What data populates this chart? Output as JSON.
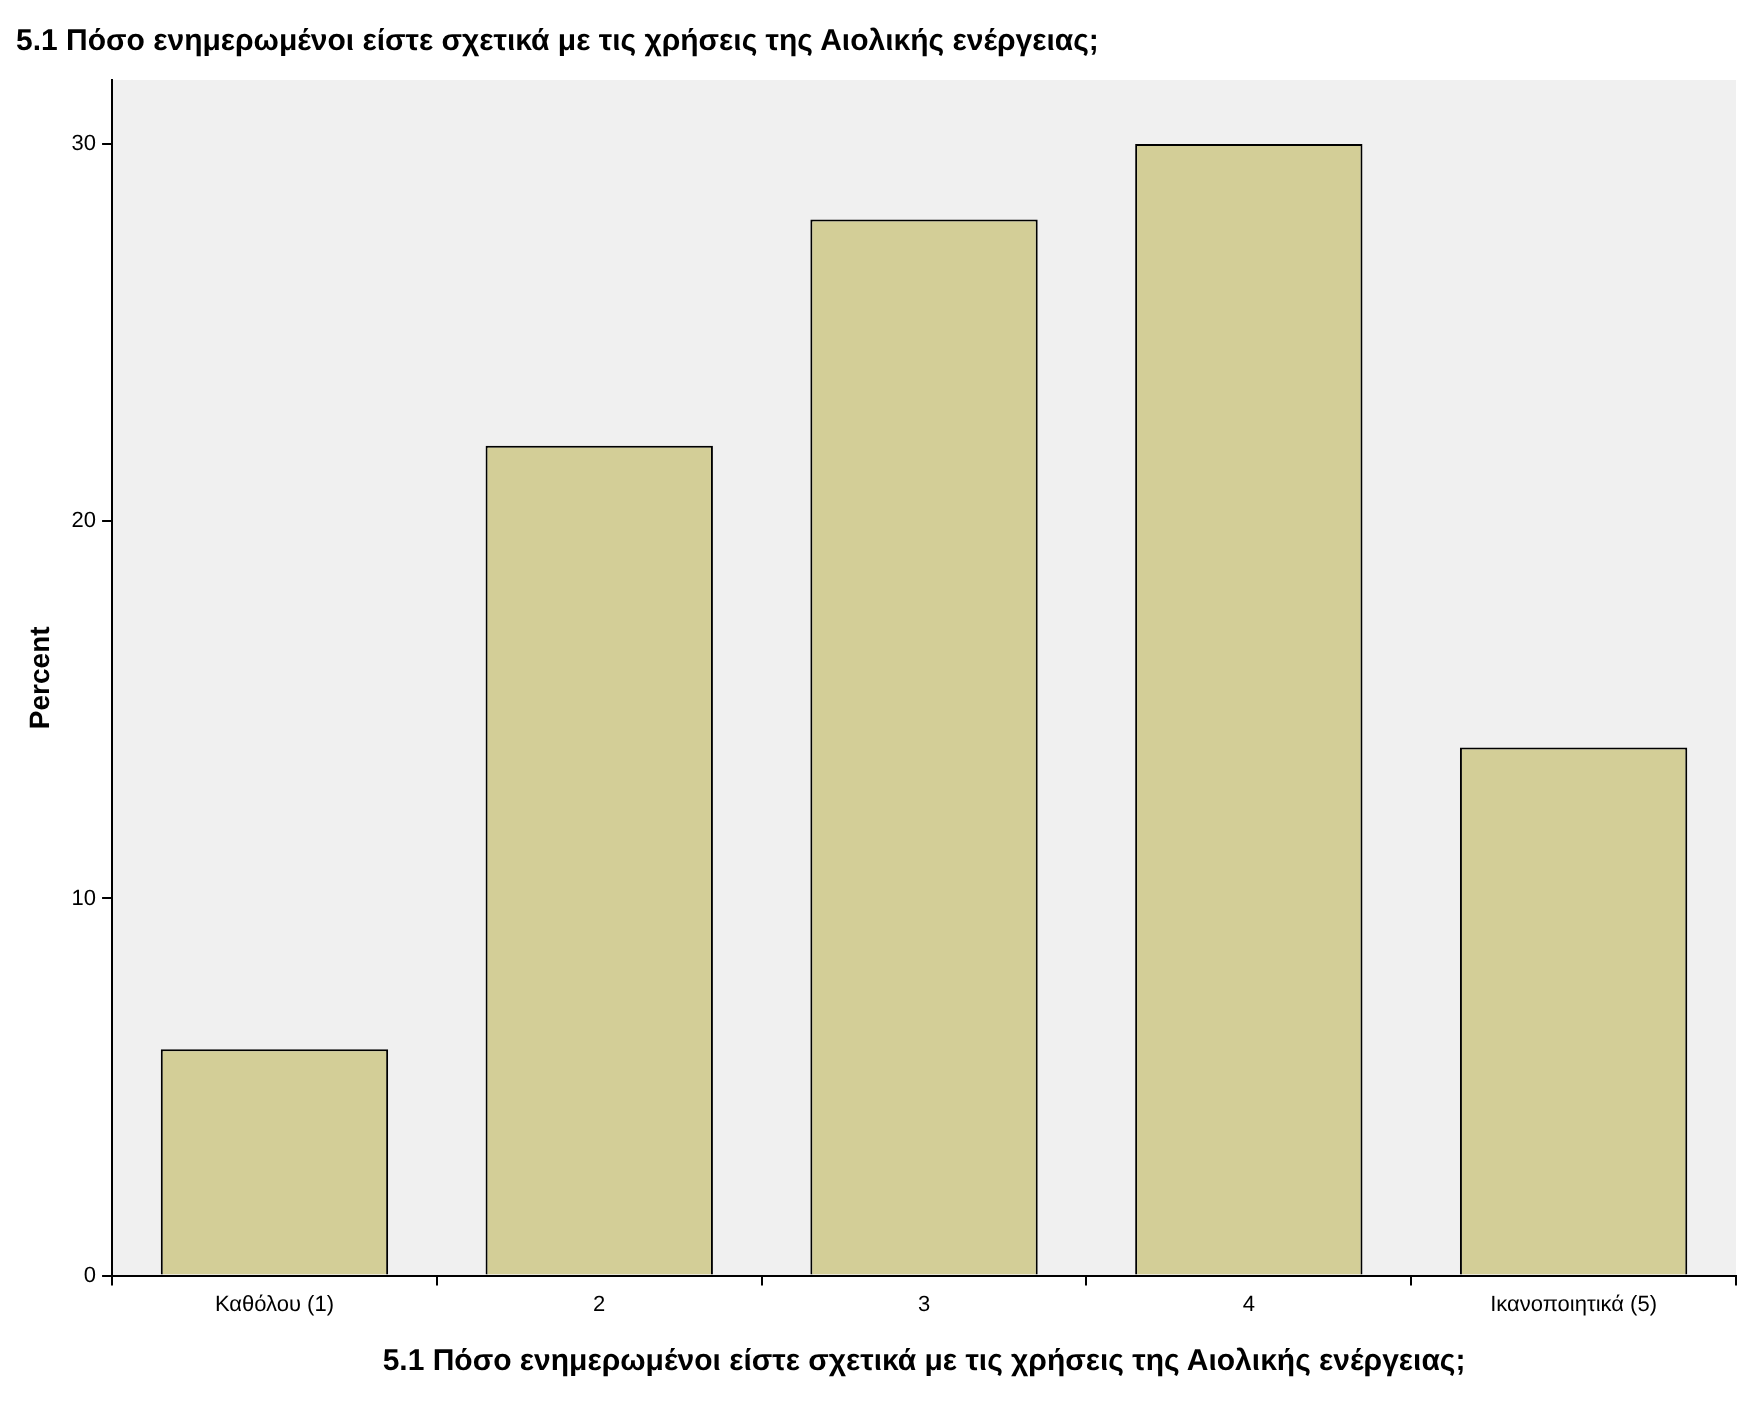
{
  "chart_data": {
    "type": "bar",
    "title": "5.1 Πόσο ενημερωμένοι είστε σχετικά με τις χρήσεις της Αιολικής ενέργειας;",
    "xlabel": "5.1 Πόσο ενημερωμένοι είστε σχετικά με τις χρήσεις της Αιολικής ενέργειας;",
    "ylabel": "Percent",
    "categories": [
      "Καθόλου (1)",
      "2",
      "3",
      "4",
      "Ικανοποιητικά (5)"
    ],
    "values": [
      6,
      22,
      28,
      30,
      14
    ],
    "color": "#d3ce97",
    "ylim": [
      0,
      31.7
    ],
    "yticks": [
      0,
      10,
      20,
      30
    ],
    "grid": false,
    "legend": false
  }
}
